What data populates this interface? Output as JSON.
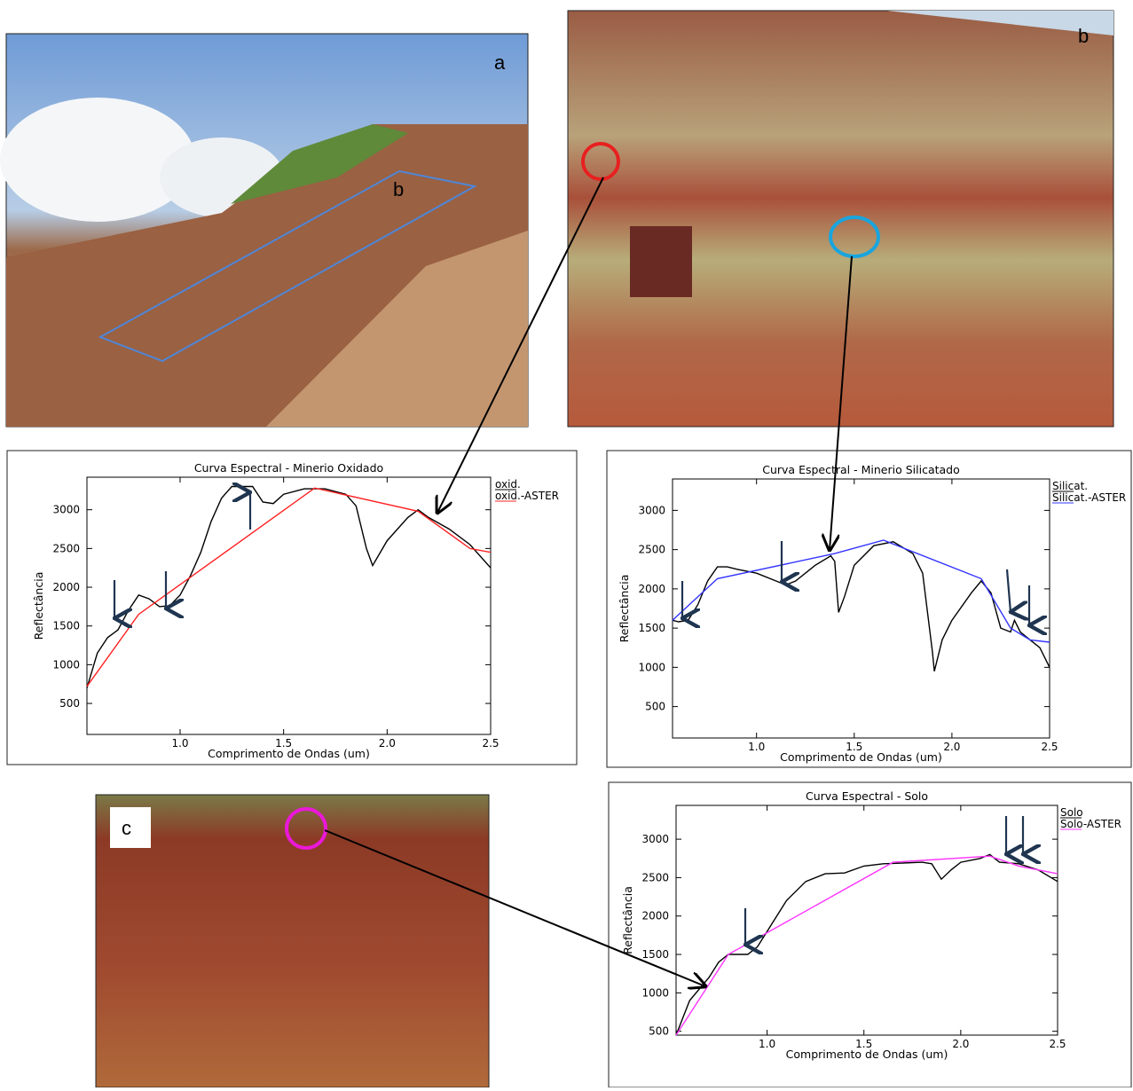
{
  "photos": [
    {
      "label": "a",
      "inset_label": "b"
    },
    {
      "label": "b"
    },
    {
      "label": "c"
    }
  ],
  "chart_data": [
    {
      "type": "line",
      "title": "Curva Espectral - Minerio Oxidado",
      "x_label": "Comprimento de Ondas (um)",
      "y_label": "Reflectância",
      "xlim": [
        0.55,
        2.5
      ],
      "ylim": [
        100,
        3420
      ],
      "xticks": [
        {
          "value": 1,
          "label": "1.0"
        },
        1.5,
        {
          "value": 2,
          "label": "2.0"
        },
        2.5
      ],
      "yticks": [
        500,
        1000,
        1500,
        2000,
        2500,
        3000
      ],
      "series": [
        {
          "name": "oxid.",
          "color": "#000000",
          "x": [
            0.55,
            0.6,
            0.65,
            0.7,
            0.75,
            0.8,
            0.85,
            0.9,
            0.95,
            1.0,
            1.05,
            1.1,
            1.15,
            1.2,
            1.25,
            1.3,
            1.35,
            1.4,
            1.45,
            1.5,
            1.6,
            1.7,
            1.8,
            1.85,
            1.9,
            1.93,
            2.0,
            2.1,
            2.15,
            2.2,
            2.3,
            2.4,
            2.5
          ],
          "values": [
            700,
            1150,
            1350,
            1450,
            1700,
            1900,
            1850,
            1750,
            1760,
            1900,
            2150,
            2450,
            2850,
            3150,
            3300,
            3300,
            3300,
            3100,
            3080,
            3200,
            3270,
            3270,
            3200,
            3050,
            2500,
            2280,
            2600,
            2900,
            3000,
            2900,
            2750,
            2550,
            2250
          ]
        },
        {
          "name": "oxid.-ASTER",
          "color": "#ff2020",
          "x": [
            0.55,
            0.8,
            1.65,
            2.15,
            2.4,
            2.5
          ],
          "values": [
            720,
            1650,
            3280,
            2980,
            2500,
            2450
          ]
        }
      ]
    },
    {
      "type": "line",
      "title": "Curva Espectral - Minerio Silicatado",
      "x_label": "Comprimento de Ondas (um)",
      "y_label": "Reflectância",
      "xlim": [
        0.57,
        2.5
      ],
      "ylim": [
        100,
        3400
      ],
      "xticks": [
        {
          "value": 1,
          "label": "1.0"
        },
        1.5,
        {
          "value": 2,
          "label": "2.0"
        },
        2.5
      ],
      "yticks": [
        500,
        1000,
        1500,
        2000,
        2500,
        3000
      ],
      "series": [
        {
          "name": "Silicat.",
          "color": "#000000",
          "x": [
            0.57,
            0.6,
            0.65,
            0.7,
            0.75,
            0.8,
            0.85,
            0.9,
            1.0,
            1.1,
            1.15,
            1.2,
            1.3,
            1.38,
            1.4,
            1.42,
            1.45,
            1.5,
            1.6,
            1.7,
            1.8,
            1.85,
            1.9,
            1.91,
            1.95,
            2.0,
            2.1,
            2.15,
            2.2,
            2.25,
            2.3,
            2.32,
            2.35,
            2.4,
            2.45,
            2.5
          ],
          "values": [
            1600,
            1580,
            1600,
            1800,
            2100,
            2280,
            2280,
            2250,
            2200,
            2100,
            2050,
            2100,
            2300,
            2420,
            2350,
            1700,
            1900,
            2300,
            2550,
            2600,
            2450,
            2200,
            1200,
            950,
            1350,
            1600,
            1950,
            2100,
            1950,
            1500,
            1450,
            1600,
            1450,
            1350,
            1250,
            1000
          ]
        },
        {
          "name": "Silicat.-ASTER",
          "color": "#3333ff",
          "x": [
            0.57,
            0.8,
            1.4,
            1.65,
            2.15,
            2.3,
            2.4,
            2.5
          ],
          "values": [
            1600,
            2130,
            2450,
            2620,
            2130,
            1500,
            1350,
            1320
          ]
        }
      ]
    },
    {
      "type": "line",
      "title": "Curva Espectral - Solo",
      "x_label": "Comprimento de Ondas (um)",
      "y_label": "Reflectância",
      "xlim": [
        0.53,
        2.5
      ],
      "ylim": [
        450,
        3440
      ],
      "xticks": [
        {
          "value": 1,
          "label": "1.0"
        },
        1.5,
        {
          "value": 2,
          "label": "2.0"
        },
        2.5
      ],
      "yticks": [
        500,
        1000,
        1500,
        2000,
        2500,
        3000
      ],
      "series": [
        {
          "name": "Solo",
          "color": "#000000",
          "x": [
            0.53,
            0.6,
            0.7,
            0.75,
            0.8,
            0.85,
            0.9,
            0.95,
            1.0,
            1.1,
            1.2,
            1.3,
            1.4,
            1.5,
            1.6,
            1.7,
            1.8,
            1.85,
            1.9,
            1.95,
            2.0,
            2.1,
            2.15,
            2.2,
            2.3,
            2.4,
            2.5
          ],
          "values": [
            450,
            900,
            1200,
            1400,
            1500,
            1500,
            1500,
            1600,
            1800,
            2200,
            2450,
            2550,
            2560,
            2650,
            2680,
            2690,
            2700,
            2680,
            2480,
            2600,
            2700,
            2750,
            2800,
            2700,
            2680,
            2600,
            2450
          ]
        },
        {
          "name": "Solo-ASTER",
          "color": "#ff33ff",
          "x": [
            0.53,
            0.8,
            1.65,
            2.15,
            2.3,
            2.5
          ],
          "values": [
            450,
            1500,
            2700,
            2780,
            2650,
            2550
          ]
        }
      ]
    }
  ]
}
